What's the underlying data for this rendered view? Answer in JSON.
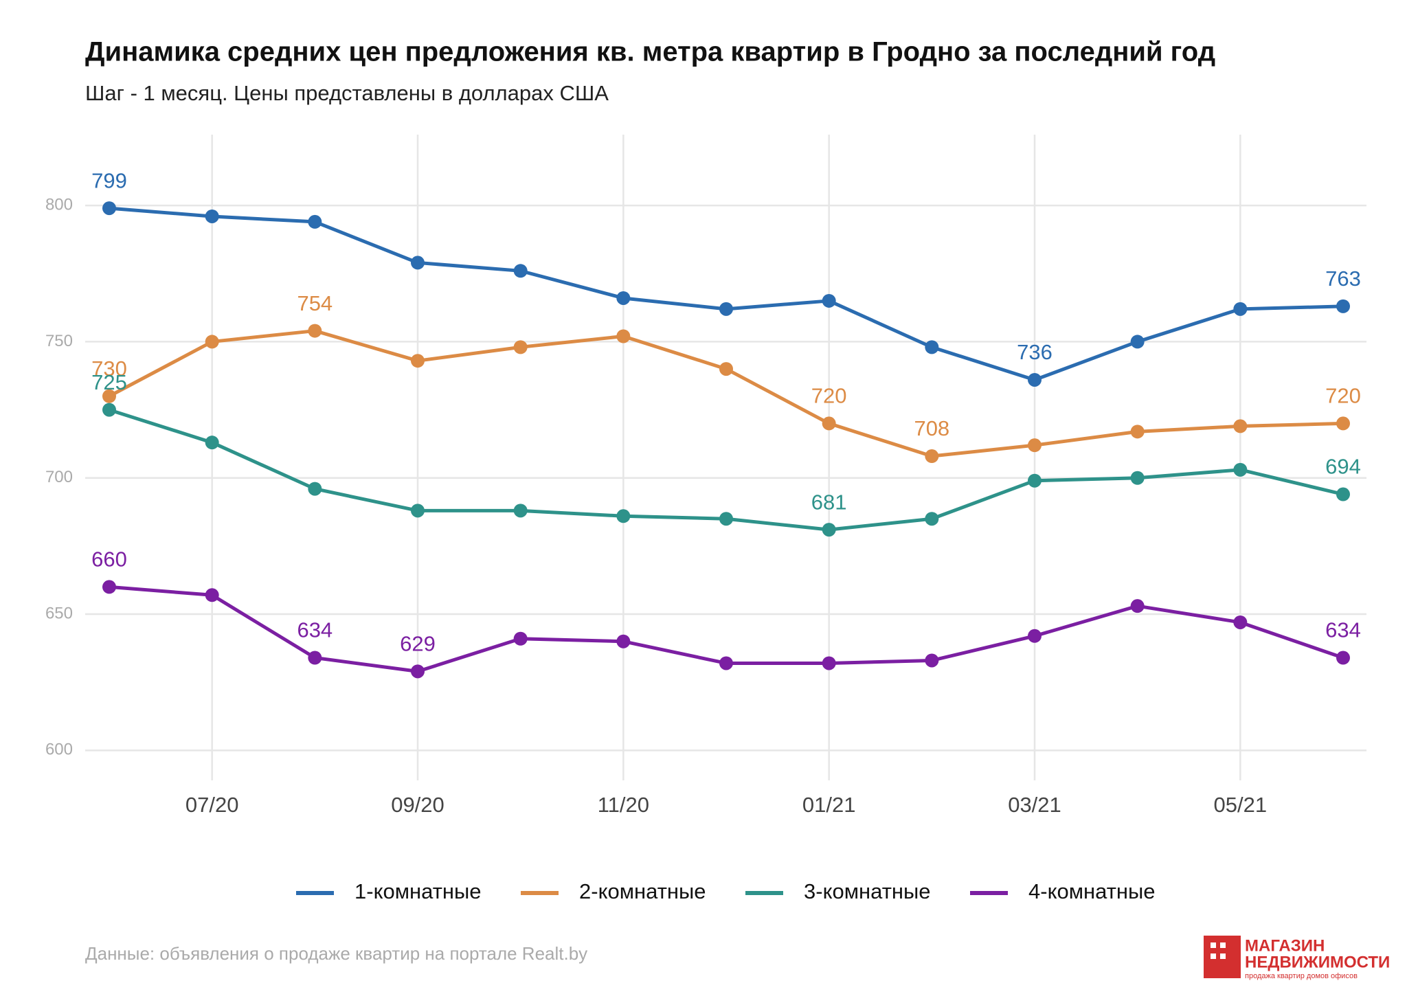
{
  "chart_data": {
    "type": "line",
    "title": "Динамика средних цен предложения кв. метра квартир в Гродно за последний год",
    "subtitle": "Шаг - 1 месяц. Цены представлены в долларах США",
    "categories": [
      null,
      "07/20",
      null,
      "09/20",
      null,
      "11/20",
      null,
      "01/21",
      null,
      "03/21",
      null,
      "05/21",
      null
    ],
    "series": [
      {
        "name": "1-комнатные",
        "color": "#2b6cb0",
        "values": [
          799,
          796,
          794,
          779,
          776,
          766,
          762,
          765,
          748,
          736,
          750,
          762,
          763
        ],
        "labeled_points": [
          0,
          9,
          12
        ]
      },
      {
        "name": "2-комнатные",
        "color": "#dc8b45",
        "values": [
          730,
          750,
          754,
          743,
          748,
          752,
          740,
          720,
          708,
          712,
          717,
          719,
          720
        ],
        "labeled_points": [
          0,
          2,
          7,
          8,
          12
        ]
      },
      {
        "name": "3-комнатные",
        "color": "#2e928a",
        "values": [
          725,
          713,
          696,
          688,
          688,
          686,
          685,
          681,
          685,
          699,
          700,
          703,
          694
        ],
        "labeled_points": [
          0,
          7,
          12
        ]
      },
      {
        "name": "4-комнатные",
        "color": "#7b1fa2",
        "values": [
          660,
          657,
          634,
          629,
          641,
          640,
          632,
          632,
          633,
          642,
          653,
          647,
          634
        ],
        "labeled_points": [
          0,
          2,
          3,
          12
        ]
      }
    ],
    "ylim": [
      589,
      826
    ],
    "yticks": [
      600,
      650,
      700,
      750,
      800
    ],
    "grid": true,
    "legend": "bottom",
    "source": "Данные: объявления о продаже квартир на портале Realt.by",
    "logo": {
      "line1": "МАГАЗИН",
      "line2": "НЕДВИЖИМОСТИ",
      "tagline": "продажа квартир домов офисов"
    }
  }
}
